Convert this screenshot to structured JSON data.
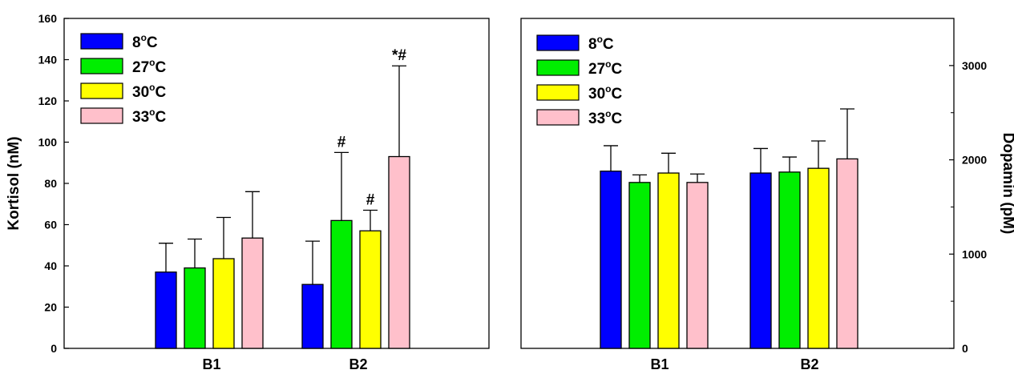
{
  "colors": {
    "8C": "#0000ff",
    "27C": "#00ee00",
    "30C": "#ffff00",
    "33C": "#ffc0cb"
  },
  "chart_data": [
    {
      "type": "bar",
      "ylabel": "Kortisol (nM)",
      "ylim": [
        0,
        160
      ],
      "yticks": [
        0,
        20,
        40,
        60,
        80,
        100,
        120,
        140,
        160
      ],
      "categories": [
        "B1",
        "B2"
      ],
      "legend_position": "top-left",
      "series": [
        {
          "name": "8",
          "unit": "oC",
          "color_key": "8C",
          "values": [
            37,
            31
          ],
          "errors": [
            14,
            21
          ],
          "annotations": [
            "",
            ""
          ]
        },
        {
          "name": "27",
          "unit": "oC",
          "color_key": "27C",
          "values": [
            39,
            62
          ],
          "errors": [
            14,
            33
          ],
          "annotations": [
            "",
            "#"
          ]
        },
        {
          "name": "30",
          "unit": "oC",
          "color_key": "30C",
          "values": [
            43.5,
            57
          ],
          "errors": [
            20,
            10
          ],
          "annotations": [
            "",
            "#"
          ]
        },
        {
          "name": "33",
          "unit": "oC",
          "color_key": "33C",
          "values": [
            53.5,
            93
          ],
          "errors": [
            22.5,
            44
          ],
          "annotations": [
            "",
            "*#"
          ]
        }
      ]
    },
    {
      "type": "bar",
      "ylabel": "Dopamin (pM)",
      "ylim": [
        0,
        3500
      ],
      "yticks": [
        0,
        1000,
        2000,
        3000
      ],
      "minor_ticks": [
        500,
        1500,
        2500
      ],
      "categories": [
        "B1",
        "B2"
      ],
      "legend_position": "top-left",
      "series": [
        {
          "name": "8",
          "unit": "oC",
          "color_key": "8C",
          "values": [
            1880,
            1860
          ],
          "errors": [
            270,
            260
          ],
          "annotations": [
            "",
            ""
          ]
        },
        {
          "name": "27",
          "unit": "oC",
          "color_key": "27C",
          "values": [
            1760,
            1870
          ],
          "errors": [
            80,
            160
          ],
          "annotations": [
            "",
            ""
          ]
        },
        {
          "name": "30",
          "unit": "oC",
          "color_key": "30C",
          "values": [
            1860,
            1910
          ],
          "errors": [
            210,
            290
          ],
          "annotations": [
            "",
            ""
          ]
        },
        {
          "name": "33",
          "unit": "oC",
          "color_key": "33C",
          "values": [
            1760,
            2010
          ],
          "errors": [
            90,
            530
          ],
          "annotations": [
            "",
            ""
          ]
        }
      ]
    }
  ]
}
